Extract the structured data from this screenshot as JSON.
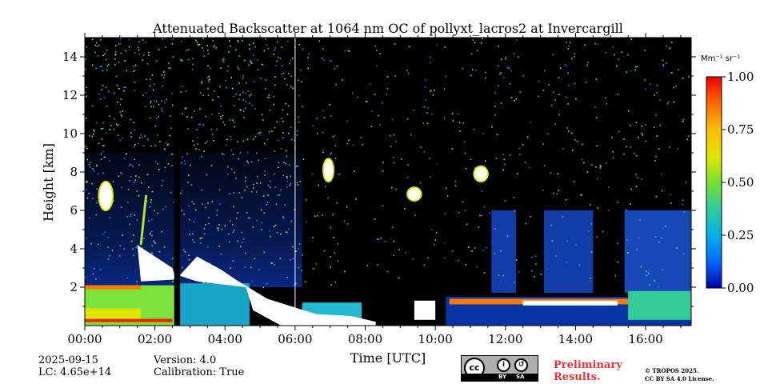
{
  "chart_data": {
    "type": "heatmap",
    "title": "Attenuated Backscatter at 1064 nm OC of pollyxt_lacros2 at Invercargill",
    "xlabel": "Time [UTC]",
    "ylabel": "Height [km]",
    "xlim": [
      0,
      17.3
    ],
    "ylim": [
      0,
      15
    ],
    "x_ticks": [
      {
        "value": 0,
        "label": "00:00"
      },
      {
        "value": 2,
        "label": "02:00"
      },
      {
        "value": 4,
        "label": "04:00"
      },
      {
        "value": 6,
        "label": "06:00"
      },
      {
        "value": 8,
        "label": "08:00"
      },
      {
        "value": 10,
        "label": "10:00"
      },
      {
        "value": 12,
        "label": "12:00"
      },
      {
        "value": 14,
        "label": "14:00"
      },
      {
        "value": 16,
        "label": "16:00"
      }
    ],
    "y_ticks": [
      {
        "value": 2,
        "label": "2"
      },
      {
        "value": 4,
        "label": "4"
      },
      {
        "value": 6,
        "label": "6"
      },
      {
        "value": 8,
        "label": "8"
      },
      {
        "value": 10,
        "label": "10"
      },
      {
        "value": 12,
        "label": "12"
      },
      {
        "value": 14,
        "label": "14"
      }
    ],
    "colorbar": {
      "unit": "Mm⁻¹ sr⁻¹",
      "min": 0.0,
      "max": 1.0,
      "ticks": [
        {
          "value": 0.0,
          "label": "0.00"
        },
        {
          "value": 0.25,
          "label": "0.25"
        },
        {
          "value": 0.5,
          "label": "0.50"
        },
        {
          "value": 0.75,
          "label": "0.75"
        },
        {
          "value": 1.0,
          "label": "1.00"
        }
      ],
      "colormap": [
        "#0000aa",
        "#0066ff",
        "#00b3e6",
        "#33cc99",
        "#77e033",
        "#dde600",
        "#ffbb00",
        "#ff6600",
        "#ee0000"
      ]
    },
    "data_gaps": [
      {
        "start": 2.55,
        "end": 2.72
      },
      {
        "start": 10.05,
        "end": 10.25
      }
    ],
    "features": [
      {
        "name": "boundary layer",
        "time_start": 0,
        "time_end": 17.3,
        "top_km": 2.0
      },
      {
        "name": "clouds (saturated)",
        "time_start": 2.7,
        "time_end": 6.5,
        "top_km": 3.5
      },
      {
        "name": "elevated cloud",
        "time_start": 0.4,
        "time_end": 0.8,
        "base_km": 6.0,
        "top_km": 7.5
      },
      {
        "name": "elevated cloud",
        "time_start": 6.8,
        "time_end": 7.1,
        "base_km": 7.5,
        "top_km": 8.7
      },
      {
        "name": "elevated cloud",
        "time_start": 9.2,
        "time_end": 9.6,
        "base_km": 6.5,
        "top_km": 7.2
      },
      {
        "name": "elevated cloud",
        "time_start": 11.1,
        "time_end": 11.5,
        "base_km": 7.5,
        "top_km": 8.3
      }
    ]
  },
  "footer": {
    "date": "2025-09-15",
    "lc": "LC: 4.65e+14",
    "version": "Version: 4.0",
    "calibration": "Calibration: True",
    "preliminary_line1": "Preliminary",
    "preliminary_line2": "Results.",
    "copyright_line1": "© TROPOS 2025.",
    "copyright_line2": "CC BY SA 4.0 License."
  },
  "license_badge": {
    "cc": "cc",
    "by": "BY",
    "sa": "SA"
  },
  "colors": {
    "background_signal": "#000000",
    "saturated": "#ffffff",
    "preliminary": "#e8333a"
  }
}
